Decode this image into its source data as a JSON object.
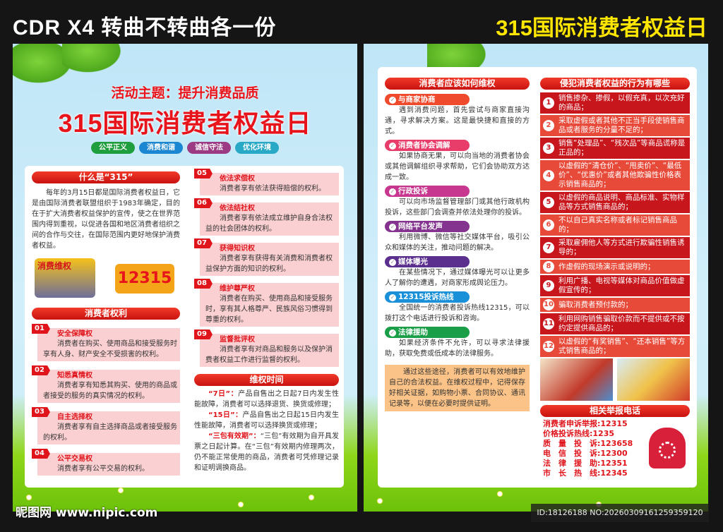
{
  "banner": {
    "left": "CDR  X4  转曲不转曲各一份",
    "right": "315国际消费者权益日"
  },
  "left": {
    "theme": "活动主题：提升消费品质",
    "title": "315国际消费者权益日",
    "tags": [
      {
        "label": "公平正义",
        "color": "#1e9e3c"
      },
      {
        "label": "消费和谐",
        "color": "#1b86d1"
      },
      {
        "label": "诚信守法",
        "color": "#9c3a84"
      },
      {
        "label": "优化环境",
        "color": "#2aa9c6"
      }
    ],
    "what_header": "什么是“315”",
    "what_text": "每年的3月15日都是国际消费者权益日，它是由国际消费者联盟组织于1983年确定，目的在于扩大消费者权益保护的宣传，使之在世界范围内得到重视，以促进各国和地区消费者组织之间的合作与交往，在国际范围内更好地保护消费者权益。",
    "illustration_text": "消费维权",
    "hotline_sign": "12315",
    "rights_header": "消费者权利",
    "rights": [
      {
        "num": "01",
        "title": "安全保障权",
        "text": "消费者在购买、使用商品和接受服务时享有人身、财产安全不受损害的权利。"
      },
      {
        "num": "02",
        "title": "知悉真情权",
        "text": "消费者享有知悉其购买、使用的商品或者接受的服务的真实情况的权利。"
      },
      {
        "num": "03",
        "title": "自主选择权",
        "text": "消费者享有自主选择商品或者接受服务的权利。"
      },
      {
        "num": "04",
        "title": "公平交易权",
        "text": "消费者享有公平交易的权利。"
      },
      {
        "num": "05",
        "title": "依法求偿权",
        "text": "消费者享有依法获得赔偿的权利。"
      },
      {
        "num": "06",
        "title": "依法结社权",
        "text": "消费者享有依法成立维护自身合法权益的社会团体的权利。"
      },
      {
        "num": "07",
        "title": "获得知识权",
        "text": "消费者享有获得有关消费和消费者权益保护方面的知识的权利。"
      },
      {
        "num": "08",
        "title": "维护尊严权",
        "text": "消费者在购买、使用商品和接受服务时，享有其人格尊严、民族风俗习惯得到尊重的权利。"
      },
      {
        "num": "09",
        "title": "监督批评权",
        "text": "消费者享有对商品和服务以及保护消费者权益工作进行监督的权利。"
      }
    ],
    "time_header": "维权时间",
    "time_items": [
      {
        "label": "“7日”：",
        "text": "产品自售出之日起7日内发生性能故障，消费者可以选择退货、换货或修理；"
      },
      {
        "label": "“15日”：",
        "text": "产品自售出之日起15日内发生性能故障，消费者可以选择换货或修理；"
      },
      {
        "label": "“三包有效期”：",
        "text": "“三包”有效期为自开具发票之日起计算。在“三包”有效期内修理两次，仍不能正常使用的商品，消费者可凭修理记录和证明调换商品。"
      }
    ]
  },
  "right": {
    "how_header": "消费者应该如何维权",
    "ways": [
      {
        "title": "与商家协商",
        "color": "#ef4a2b",
        "text": "遇到消费问题，首先尝试与商家直接沟通，寻求解决方案。这是最快捷和直接的方式。"
      },
      {
        "title": "消费者协会调解",
        "color": "#e83d6b",
        "text": "如果协商无果，可以向当地的消费者协会或其他调解组织寻求帮助，它们会协助双方达成一致。"
      },
      {
        "title": "行政投诉",
        "color": "#c7378f",
        "text": "可以向市场监督管理部门或其他行政机构投诉，这些部门会调查并依法处理你的投诉。"
      },
      {
        "title": "网络平台发声",
        "color": "#84338f",
        "text": "利用微博、微信等社交媒体平台，吸引公众和媒体的关注，推动问题的解决。"
      },
      {
        "title": "媒体曝光",
        "color": "#5b2f8e",
        "text": "在某些情况下，通过媒体曝光可以让更多人了解你的遭遇，对商家形成舆论压力。"
      },
      {
        "title": "12315投诉热线",
        "color": "#1a90d8",
        "text": "全国统一的消费者投诉热线12315，可以拨打这个电话进行投诉和咨询。"
      },
      {
        "title": "法律援助",
        "color": "#1a9f48",
        "text": "如果经济条件不允许，可以寻求法律援助，获取免费或低成本的法律服务。"
      }
    ],
    "summary": "通过这些途径，消费者可以有效地维护自己的合法权益。在维权过程中，记得保存好相关证据，如购物小票、合同协议、通讯记录等，以便在必要时提供证明。",
    "violations_header": "侵犯消费者权益的行为有哪些",
    "violations": [
      "销售掺杂、掺假，以假充真，以次充好的商品；",
      "采取虚假或者其他不正当手段使销售商品或者服务的分量不足的；",
      "销售“处理品”、“残次品”等商品谎称是正品的；",
      "以虚假的“清仓价”、“甩卖价”、“最低价”、“优惠价”或者其他欺骗性价格表示销售商品的；",
      "以虚假的商品说明、商品标准、实物样品等方式销售商品的；",
      "不以自己真实名称或者标记销售商品的；",
      "采取雇佣他人等方式进行欺骗性销售诱导的；",
      "作虚假的现场演示或说明的；",
      "利用广播、电视等媒体对商品价值做虚假宣传的；",
      "骗取消费者预付款的；",
      "利用网购销售骗取价款而不提供或不按约定提供商品的；",
      "以虚假的“有奖销售”、“还本销售”等方式销售商品的；"
    ],
    "phone_header": "相关举报电话",
    "contacts": [
      {
        "label": "消费者申诉举报",
        "number": "12315"
      },
      {
        "label": "价格投诉热线",
        "number": "1235"
      },
      {
        "label": "质　量　投　诉",
        "number": "123658"
      },
      {
        "label": "电　信　投　诉",
        "number": "12300"
      },
      {
        "label": "法　律　援　助",
        "number": "12351"
      },
      {
        "label": "市　长　热　线",
        "number": "12345"
      }
    ],
    "colors": {
      "dark": "#c8161d",
      "light": "#e84a3a"
    }
  },
  "watermark": {
    "logo": "昵图网 www.nipic.com",
    "id": "ID:18126188 NO:20260309161259359120"
  }
}
